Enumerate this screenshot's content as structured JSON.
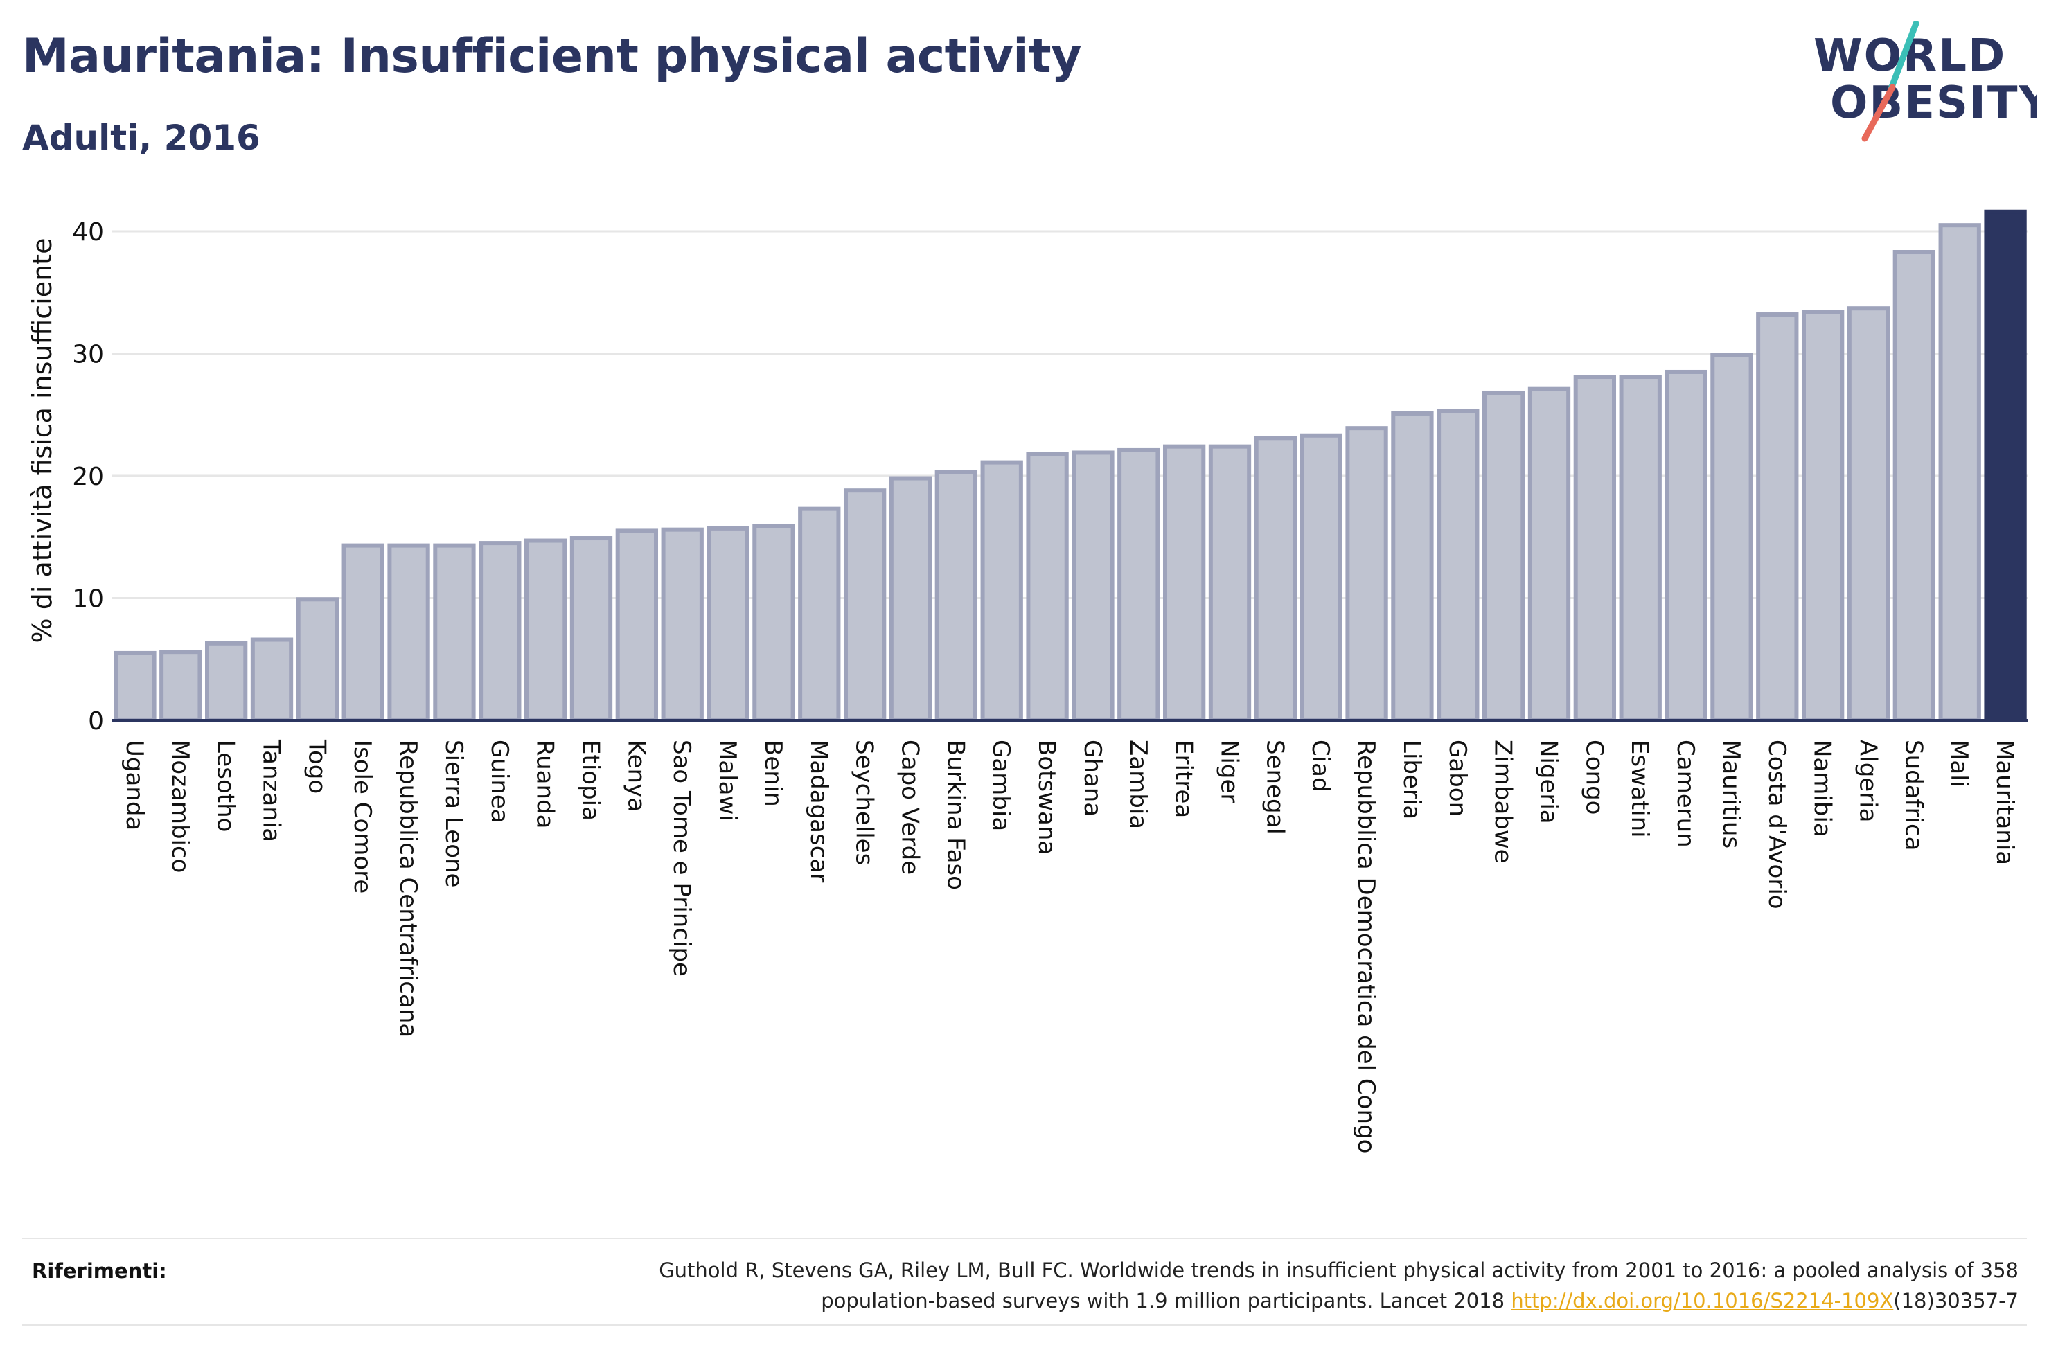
{
  "header": {
    "title": "Mauritania: Insufficient physical activity",
    "subtitle": "Adulti, 2016"
  },
  "logo": {
    "line1": "WORLD",
    "line2": "OBESITY",
    "colors": {
      "text": "#2b3560",
      "slash_teal": "#3bbfb7",
      "slash_red": "#e8695a"
    }
  },
  "colors": {
    "bar_fill": "#bfc3d0",
    "bar_stroke": "#9ea3bb",
    "highlight": "#2b3560",
    "grid": "#e6e6e6",
    "axis": "#2b3560",
    "link": "#e8a917"
  },
  "chart_data": {
    "type": "bar",
    "ylabel": "% di attività fisica insufficiente",
    "xlabel": "",
    "ylim": [
      0,
      42
    ],
    "yticks": [
      0,
      10,
      20,
      30,
      40
    ],
    "grid": true,
    "highlight": "Mauritania",
    "categories": [
      "Uganda",
      "Mozambico",
      "Lesotho",
      "Tanzania",
      "Togo",
      "Isole Comore",
      "Repubblica Centrafricana",
      "Sierra Leone",
      "Guinea",
      "Ruanda",
      "Etiopia",
      "Kenya",
      "Sao Tome e Principe",
      "Malawi",
      "Benin",
      "Madagascar",
      "Seychelles",
      "Capo Verde",
      "Burkina Faso",
      "Gambia",
      "Botswana",
      "Ghana",
      "Zambia",
      "Eritrea",
      "Niger",
      "Senegal",
      "Ciad",
      "Repubblica Democratica del Congo",
      "Liberia",
      "Gabon",
      "Zimbabwe",
      "Nigeria",
      "Congo",
      "Eswatini",
      "Camerun",
      "Mauritius",
      "Costa d'Avorio",
      "Namibia",
      "Algeria",
      "Sudafrica",
      "Mali",
      "Mauritania"
    ],
    "values": [
      5.5,
      5.6,
      6.3,
      6.6,
      9.9,
      14.3,
      14.3,
      14.3,
      14.5,
      14.7,
      14.9,
      15.5,
      15.6,
      15.7,
      15.9,
      17.3,
      18.8,
      19.8,
      20.3,
      21.1,
      21.8,
      21.9,
      22.1,
      22.4,
      22.4,
      23.1,
      23.3,
      23.9,
      25.1,
      25.3,
      26.8,
      27.1,
      28.1,
      28.1,
      28.5,
      29.9,
      33.2,
      33.4,
      33.7,
      38.3,
      40.5,
      41.6
    ]
  },
  "references": {
    "label": "Riferimenti:",
    "line1": "Guthold R, Stevens GA, Riley LM, Bull FC. Worldwide trends in insufficient physical activity from 2001 to 2016: a pooled analysis of 358",
    "line2_prefix": "population-based surveys with 1.9 million participants. Lancet 2018 ",
    "link": "http://dx.doi.org/10.1016/S2214-109X",
    "line2_suffix": "(18)30357-7"
  }
}
